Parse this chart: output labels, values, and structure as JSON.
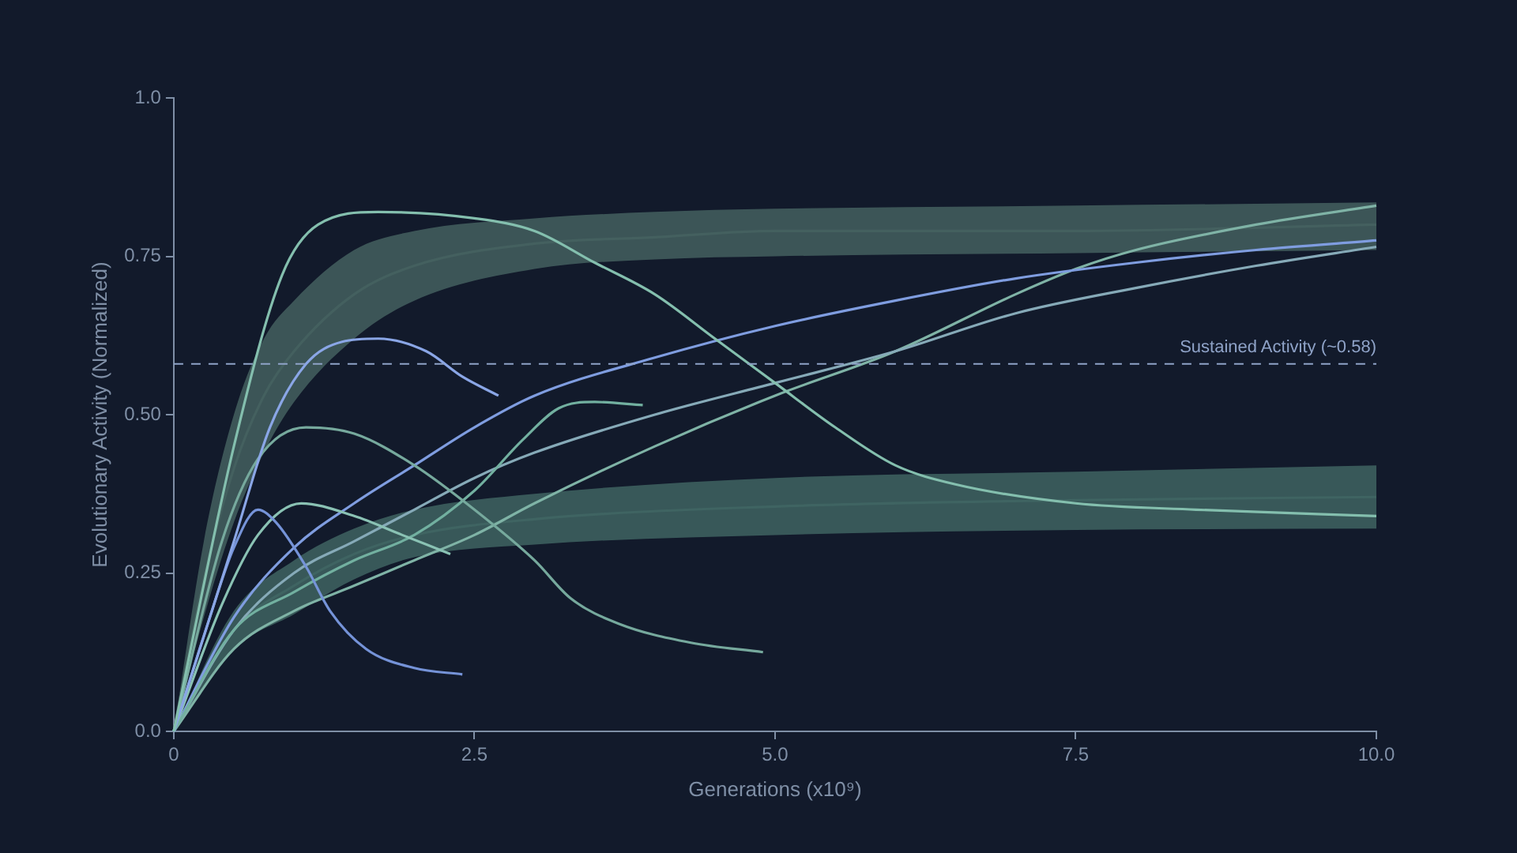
{
  "chart_data": {
    "type": "line",
    "xlabel": "Generations (x10⁹)",
    "ylabel": "Evolutionary Activity (Normalized)",
    "xlim": [
      0,
      10
    ],
    "ylim": [
      0,
      1
    ],
    "xticks": [
      0,
      2.5,
      {
        "value": 5,
        "label": "5.0"
      },
      7.5,
      {
        "value": 10,
        "label": "10.0"
      }
    ],
    "yticks": [
      {
        "value": 0,
        "label": "0.0"
      },
      0.25,
      {
        "value": 0.5,
        "label": "0.50"
      },
      0.75,
      {
        "value": 1,
        "label": "1.0"
      }
    ],
    "grid": false,
    "legend": false,
    "marker": "none",
    "line_style": "solid",
    "ref_lines": [
      {
        "axis": "y",
        "value": 0.58,
        "label": "Sustained Activity (~0.58)",
        "color": "#8fa3c8",
        "line_style": "dashed"
      }
    ],
    "series": [
      {
        "type": "line",
        "color": "#44605f",
        "x": [
          0,
          0.25,
          0.5,
          0.75,
          1,
          1.5,
          2,
          3,
          4,
          5,
          7.5,
          10
        ],
        "values": [
          0,
          0.24,
          0.415,
          0.53,
          0.6,
          0.69,
          0.735,
          0.77,
          0.78,
          0.79,
          0.79,
          0.8
        ],
        "lower": [
          0,
          0.18,
          0.33,
          0.44,
          0.52,
          0.62,
          0.68,
          0.73,
          0.745,
          0.75,
          0.755,
          0.76
        ],
        "upper": [
          0,
          0.3,
          0.5,
          0.62,
          0.68,
          0.76,
          0.79,
          0.81,
          0.82,
          0.825,
          0.83,
          0.835
        ]
      },
      {
        "type": "line",
        "color": "#3f6462",
        "x": [
          0,
          0.5,
          1,
          1.5,
          2,
          3,
          5,
          7.5,
          10
        ],
        "values": [
          0,
          0.16,
          0.23,
          0.28,
          0.31,
          0.335,
          0.355,
          0.365,
          0.37
        ],
        "lower": [
          0,
          0.13,
          0.185,
          0.24,
          0.275,
          0.295,
          0.31,
          0.318,
          0.32
        ],
        "upper": [
          0,
          0.19,
          0.27,
          0.32,
          0.35,
          0.375,
          0.4,
          0.41,
          0.42
        ]
      },
      {
        "color": "#84bfae",
        "x": [
          0,
          0.5,
          0.9,
          1.2,
          1.7,
          2.5,
          3,
          3.5,
          4,
          4.5,
          5,
          5.5,
          6,
          6.5,
          7.5,
          8.5,
          10
        ],
        "values": [
          0,
          0.45,
          0.72,
          0.8,
          0.82,
          0.81,
          0.79,
          0.74,
          0.69,
          0.62,
          0.55,
          0.48,
          0.42,
          0.39,
          0.36,
          0.35,
          0.34
        ]
      },
      {
        "color": "#8aa6e6",
        "x": [
          0,
          0.5,
          0.8,
          1.1,
          1.4,
          1.7,
          2.1,
          2.4,
          2.7
        ],
        "values": [
          0,
          0.3,
          0.48,
          0.58,
          0.615,
          0.62,
          0.6,
          0.56,
          0.53
        ]
      },
      {
        "color": "#76a99d",
        "x": [
          0,
          0.4,
          0.7,
          1.1,
          1.5,
          2,
          2.5,
          3,
          3.3,
          3.7,
          4.3,
          4.9
        ],
        "values": [
          0,
          0.3,
          0.43,
          0.48,
          0.47,
          0.42,
          0.35,
          0.27,
          0.21,
          0.17,
          0.14,
          0.125
        ]
      },
      {
        "color": "#7593d8",
        "x": [
          0,
          0.3,
          0.5,
          0.7,
          0.85,
          1.1,
          1.3,
          1.6,
          2,
          2.4
        ],
        "values": [
          0,
          0.18,
          0.29,
          0.35,
          0.33,
          0.26,
          0.19,
          0.13,
          0.1,
          0.09
        ]
      },
      {
        "color": "#8ac2b4",
        "x": [
          0,
          0.4,
          0.7,
          1.06,
          1.5,
          1.9,
          2.3
        ],
        "values": [
          0,
          0.2,
          0.31,
          0.36,
          0.34,
          0.31,
          0.28
        ]
      },
      {
        "color": "#72b0a0",
        "x": [
          0,
          0.5,
          1,
          1.5,
          2,
          2.5,
          2.9,
          3.2,
          3.5,
          3.9
        ],
        "values": [
          0,
          0.16,
          0.22,
          0.27,
          0.31,
          0.38,
          0.46,
          0.51,
          0.52,
          0.515
        ]
      },
      {
        "color": "#7f9de0",
        "x": [
          0,
          0.5,
          1,
          1.5,
          2,
          2.5,
          3,
          4,
          5,
          6,
          7,
          8,
          9,
          10
        ],
        "values": [
          0,
          0.18,
          0.29,
          0.36,
          0.42,
          0.48,
          0.53,
          0.59,
          0.64,
          0.68,
          0.715,
          0.74,
          0.76,
          0.775
        ]
      },
      {
        "color": "#86aab8",
        "x": [
          0,
          0.5,
          1,
          1.5,
          2,
          2.5,
          3,
          4,
          5,
          6,
          7,
          8,
          9,
          10
        ],
        "values": [
          0,
          0.16,
          0.25,
          0.3,
          0.35,
          0.4,
          0.44,
          0.5,
          0.55,
          0.6,
          0.66,
          0.7,
          0.735,
          0.765
        ]
      },
      {
        "color": "#7fb3a6",
        "x": [
          0,
          0.5,
          1,
          1.5,
          2,
          2.5,
          3,
          4,
          5,
          6,
          7,
          7.5,
          8,
          9,
          10
        ],
        "values": [
          0,
          0.13,
          0.19,
          0.23,
          0.27,
          0.31,
          0.36,
          0.45,
          0.53,
          0.6,
          0.69,
          0.73,
          0.76,
          0.8,
          0.83
        ]
      }
    ]
  }
}
